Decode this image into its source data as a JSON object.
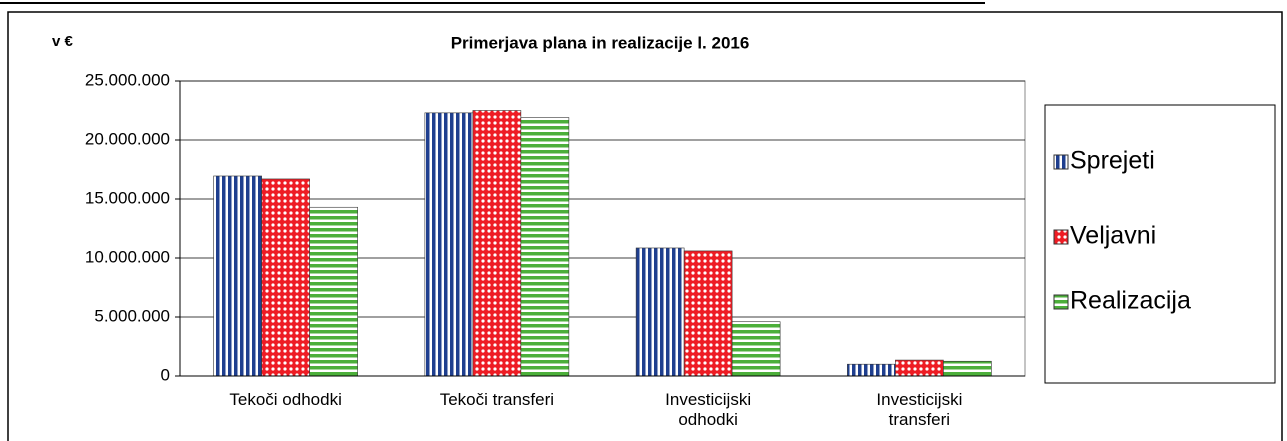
{
  "chart_data": {
    "type": "bar",
    "title": "Primerjava plana in realizacije l. 2016",
    "y_label": "v €",
    "categories": [
      "Tekoči odhodki",
      "Tekoči transferi",
      "Investicijski odhodki",
      "Investicijski transferi"
    ],
    "series": [
      {
        "name": "Sprejeti",
        "color": "#1f3f8f",
        "values": [
          16950000,
          22300000,
          10850000,
          1000000
        ]
      },
      {
        "name": "Veljavni",
        "color": "#ee1c24",
        "values": [
          16700000,
          22500000,
          10600000,
          1350000
        ]
      },
      {
        "name": "Realizacija",
        "color": "#4caf3a",
        "values": [
          14300000,
          21900000,
          4600000,
          1250000
        ]
      }
    ],
    "ylim": [
      0,
      25000000
    ],
    "yticks": [
      {
        "value": 0,
        "label": "0"
      },
      {
        "value": 5000000,
        "label": "5.000.000"
      },
      {
        "value": 10000000,
        "label": "10.000.000"
      },
      {
        "value": 15000000,
        "label": "15.000.000"
      },
      {
        "value": 20000000,
        "label": "20.000.000"
      },
      {
        "value": 25000000,
        "label": "25.000.000"
      }
    ],
    "grid": true,
    "legend": "right"
  }
}
